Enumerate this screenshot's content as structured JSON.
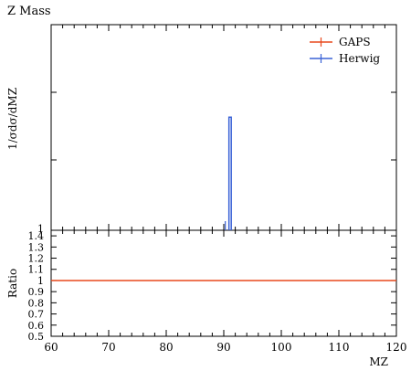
{
  "chart_data": {
    "type": "line",
    "title": "Z Mass",
    "ylabel": "1/σdσ/dM_Z",
    "xlabel": "M_Z",
    "xlim": [
      60,
      120
    ],
    "x_major_ticks": [
      60,
      70,
      80,
      90,
      100,
      110,
      120
    ],
    "x_tick_labels": [
      "60",
      "70",
      "80",
      "90",
      "100",
      "110",
      "120"
    ],
    "top_y_tick_labels": [
      "1"
    ],
    "legend_position": "top-right",
    "series": [
      {
        "name": "GAPS",
        "color": "#e8491d",
        "x": [],
        "y": []
      },
      {
        "name": "Herwig",
        "color": "#3a62d6",
        "x": [
          90.9,
          91.3
        ],
        "y": [
          0.55,
          0.55
        ]
      }
    ],
    "ratio_panel": {
      "ylabel": "Ratio",
      "ylim": [
        0.5,
        1.45
      ],
      "y_tick_labels": [
        "0.5",
        "0.6",
        "0.7",
        "0.8",
        "0.9",
        "1",
        "1.1",
        "1.2",
        "1.3",
        "1.4"
      ],
      "y_tick_values": [
        0.5,
        0.6,
        0.7,
        0.8,
        0.9,
        1.0,
        1.1,
        1.2,
        1.3,
        1.4
      ],
      "reference_value": 1.0,
      "reference_color": "#e8491d"
    }
  }
}
